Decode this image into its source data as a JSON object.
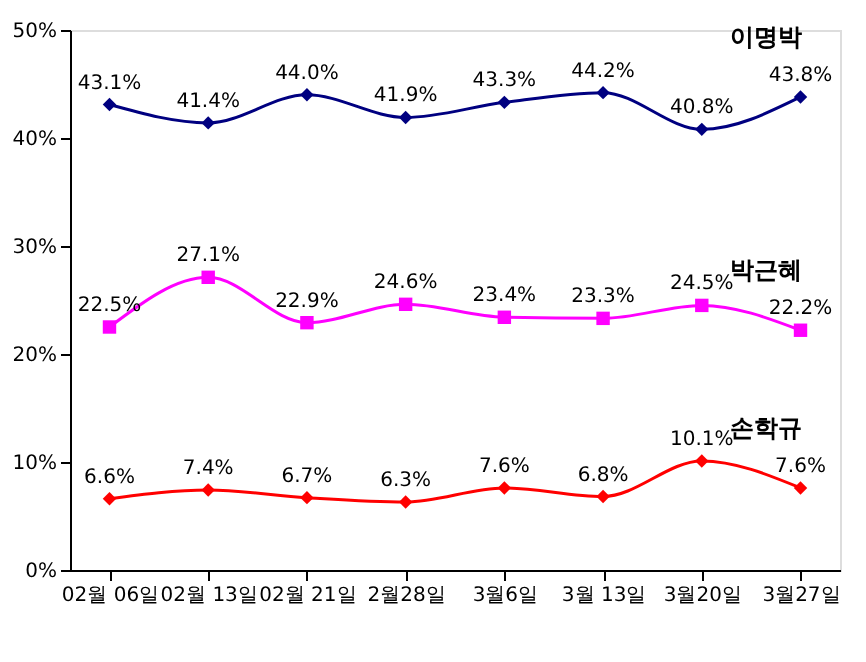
{
  "chart_data": {
    "type": "line",
    "categories": [
      "02월 06일",
      "02월 13일",
      "02월 21일",
      "2월28일",
      "3월6일",
      "3월 13일",
      "3월20일",
      "3월27일"
    ],
    "series": [
      {
        "name": "이명박",
        "color": "#000080",
        "marker": "diamond",
        "values": [
          43.1,
          41.4,
          44.0,
          41.9,
          43.3,
          44.2,
          40.8,
          43.8
        ],
        "value_labels": [
          "43.1%",
          "41.4%",
          "44.0%",
          "41.9%",
          "43.3%",
          "44.2%",
          "40.8%",
          "43.8%"
        ]
      },
      {
        "name": "박근혜",
        "color": "#ff00ff",
        "marker": "square",
        "values": [
          22.5,
          27.1,
          22.9,
          24.6,
          23.4,
          23.3,
          24.5,
          22.2
        ],
        "value_labels": [
          "22.5%",
          "27.1%",
          "22.9%",
          "24.6%",
          "23.4%",
          "23.3%",
          "24.5%",
          "22.2%"
        ]
      },
      {
        "name": "손학규",
        "color": "#ff0000",
        "marker": "diamond",
        "values": [
          6.6,
          7.4,
          6.7,
          6.3,
          7.6,
          6.8,
          10.1,
          7.6
        ],
        "value_labels": [
          "6.6%",
          "7.4%",
          "6.7%",
          "6.3%",
          "7.6%",
          "6.8%",
          "10.1%",
          "7.6%"
        ]
      }
    ],
    "ylim": [
      0,
      50
    ],
    "yticks": [
      {
        "value": 0,
        "label": "0%"
      },
      {
        "value": 10,
        "label": "10%"
      },
      {
        "value": 20,
        "label": "20%"
      },
      {
        "value": 30,
        "label": "30%"
      },
      {
        "value": 40,
        "label": "40%"
      },
      {
        "value": 50,
        "label": "50%"
      }
    ],
    "grid": false,
    "line_style": "solid"
  }
}
